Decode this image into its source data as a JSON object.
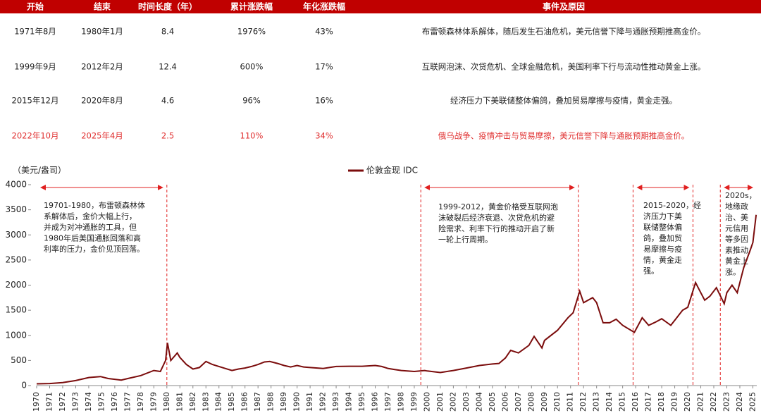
{
  "table": {
    "header": [
      "开始",
      "结束",
      "时间长度（年）",
      "累计涨跌幅",
      "年化涨跌幅",
      "事件及原因"
    ],
    "rows": [
      [
        "1971年8月",
        "1980年1月",
        "8.4",
        "1976%",
        "43%",
        "布雷顿森林体系解体，随后发生石油危机，美元信誉下降与通胀预期推高金价。"
      ],
      [
        "1999年9月",
        "2012年2月",
        "12.4",
        "600%",
        "17%",
        "互联网泡沫、次贷危机、全球金融危机，美国利率下行与流动性推动黄金上涨。"
      ],
      [
        "2015年12月",
        "2020年8月",
        "4.6",
        "96%",
        "16%",
        "经济压力下美联储整体偏鸽，叠加贸易摩擦与疫情，黄金走强。"
      ],
      [
        "2022年10月",
        "2025年4月",
        "2.5",
        "110%",
        "34%",
        "俄乌战争、疫情冲击与贸易摩擦，美元信誉下降与通胀预期推高金价。"
      ]
    ],
    "highlight_row": 3,
    "highlight_color": "#e03030",
    "header_color": "#c00000"
  },
  "chart_data": {
    "type": "line",
    "y_label": "（美元/盎司）",
    "x": [
      1970,
      1971,
      1972,
      1973,
      1974,
      1974.9,
      1975.5,
      1976.5,
      1977,
      1978,
      1979,
      1979.5,
      1979.9,
      1980.05,
      1980.3,
      1980.8,
      1981,
      1981.5,
      1982,
      1982.5,
      1983,
      1983.5,
      1984,
      1984.5,
      1985,
      1985.5,
      1986,
      1986.5,
      1987,
      1987.5,
      1987.9,
      1988.5,
      1989,
      1989.5,
      1990,
      1990.5,
      1991,
      1992,
      1993,
      1994,
      1995,
      1996,
      1996.5,
      1997,
      1997.5,
      1998,
      1999,
      1999.8,
      2000,
      2001,
      2002,
      2003,
      2004,
      2005,
      2005.5,
      2006,
      2006.4,
      2007,
      2007.8,
      2008.2,
      2008.8,
      2009,
      2010,
      2010.8,
      2011.2,
      2011.7,
      2012,
      2012.7,
      2013,
      2013.5,
      2014,
      2014.5,
      2015,
      2015.9,
      2016.5,
      2017,
      2017.5,
      2018,
      2018.7,
      2019,
      2019.6,
      2020,
      2020.6,
      2021,
      2021.3,
      2021.7,
      2022.2,
      2022.8,
      2023,
      2023.4,
      2023.8,
      2024,
      2024.3,
      2024.8,
      2025,
      2025.25
    ],
    "series": [
      {
        "name": "伦敦金现 IDC",
        "color": "#7b0c0c",
        "values": [
          35,
          40,
          60,
          100,
          160,
          180,
          140,
          110,
          140,
          200,
          300,
          280,
          500,
          850,
          500,
          650,
          560,
          420,
          330,
          360,
          480,
          420,
          380,
          340,
          300,
          330,
          350,
          380,
          420,
          470,
          480,
          440,
          400,
          370,
          400,
          370,
          360,
          340,
          380,
          385,
          385,
          400,
          380,
          340,
          320,
          300,
          280,
          300,
          290,
          260,
          300,
          350,
          400,
          430,
          440,
          550,
          700,
          650,
          800,
          980,
          750,
          900,
          1100,
          1350,
          1450,
          1880,
          1650,
          1750,
          1650,
          1250,
          1250,
          1320,
          1200,
          1060,
          1350,
          1200,
          1260,
          1330,
          1200,
          1300,
          1500,
          1560,
          2050,
          1850,
          1700,
          1780,
          1950,
          1630,
          1850,
          2000,
          1850,
          2050,
          2350,
          2700,
          2850,
          3400
        ]
      }
    ],
    "xlim": [
      1970,
      2025.3
    ],
    "ylim": [
      0,
      4000
    ],
    "xticks": [
      1970,
      1971,
      1972,
      1973,
      1974,
      1975,
      1976,
      1977,
      1978,
      1979,
      1980,
      1981,
      1982,
      1983,
      1984,
      1985,
      1986,
      1987,
      1988,
      1989,
      1990,
      1991,
      1992,
      1993,
      1994,
      1995,
      1996,
      1997,
      1998,
      1999,
      2000,
      2001,
      2002,
      2003,
      2004,
      2005,
      2006,
      2007,
      2008,
      2009,
      2010,
      2011,
      2012,
      2013,
      2014,
      2015,
      2016,
      2017,
      2018,
      2019,
      2020,
      2021,
      2022,
      2023,
      2024,
      2025
    ],
    "yticks": [
      0,
      500,
      1000,
      1500,
      2000,
      2500,
      3000,
      3500,
      4000
    ],
    "reference_lines": [
      1980,
      1999.5,
      2011.6,
      2015.8,
      2020.4,
      2022.5
    ],
    "reference_color": "#e02020",
    "annotations": [
      {
        "lines": [
          "19701-1980，布雷顿森林体",
          "系解体后，金价大幅上行，",
          "并成为对冲通胀的工具，但",
          "1980年后美国通胀回落和高",
          "利率的压力，金价见顶回落。"
        ]
      },
      {
        "lines": [
          "1999-2012，黄金价格受互联网泡",
          "沫破裂后经济衰退、次贷危机的避",
          "险需求、利率下行的推动开启了新",
          "一轮上行周期。"
        ]
      },
      {
        "lines": [
          "2015-2020，经",
          "济压力下美",
          "联储整体偏",
          "鸽，叠加贸",
          "易摩擦与疫",
          "情，黄金走",
          "强。"
        ]
      },
      {
        "lines": [
          "2020s，",
          "地缘政",
          "治、美",
          "元信用",
          "等多因",
          "素推动",
          "黄金上",
          "涨。"
        ]
      }
    ]
  }
}
